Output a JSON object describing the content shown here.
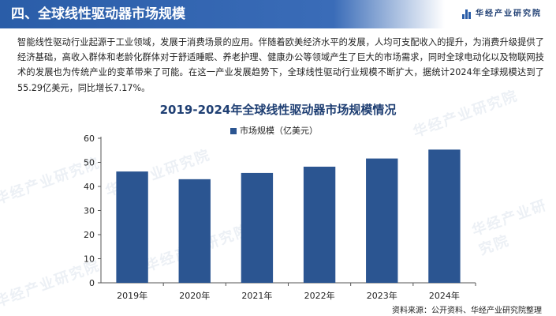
{
  "header": {
    "section_title": "四、全球线性驱动器市场规模",
    "brand": "华经产业研究院"
  },
  "paragraph": "智能线性驱动行业起源于工业领域，发展于消费场景的应用。伴随着欧美经济水平的发展，人均可支配收入的提升，为消费升级提供了经济基础，高收入群体和老龄化群体对于舒适睡眠、养老护理、健康办公等领域产生了巨大的市场需求，同时全球电动化以及物联网技术的发展也为传统产业的变革带来了可能。在这一产业发展趋势下，全球线性驱动行业规模不断扩大，据统计2024年全球规模达到了55.29亿美元，同比增长7.17%。",
  "watermark_text": "华经产业研究院",
  "source": "资料来源：公开资料、华经产业研究院整理",
  "colors": {
    "header": "#2a5da8",
    "bar": "#2b5591",
    "title": "#1f3f73"
  },
  "chart_data": {
    "type": "bar",
    "title": "2019-2024年全球线性驱动器市场规模情况",
    "categories": [
      "2019年",
      "2020年",
      "2021年",
      "2022年",
      "2023年",
      "2024年"
    ],
    "series": [
      {
        "name": "市场规模（亿美元）",
        "values": [
          46.2,
          43.0,
          45.6,
          48.2,
          51.6,
          55.29
        ]
      }
    ],
    "xlabel": "",
    "ylabel": "",
    "ylim": [
      0,
      60
    ],
    "yticks": [
      0,
      10,
      20,
      30,
      40,
      50,
      60
    ],
    "grid": false,
    "legend_position": "top-center"
  }
}
